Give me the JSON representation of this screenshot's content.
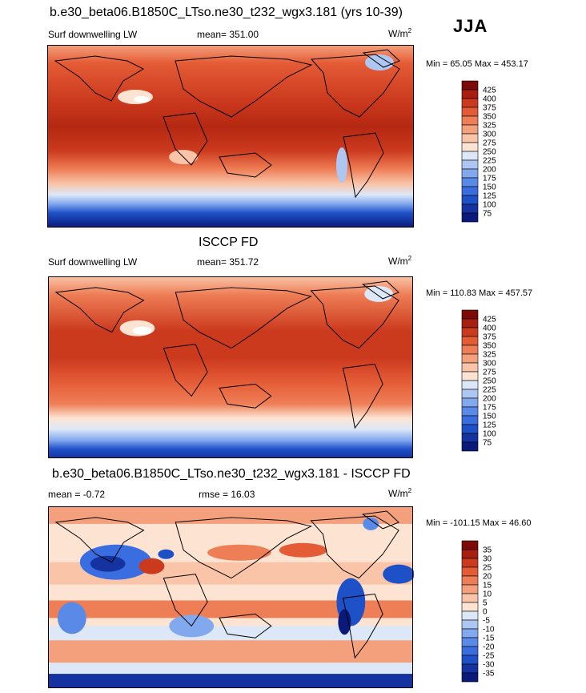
{
  "header": {
    "title1": "b.e30_beta06.B1850C_LTso.ne30_t232_wgx3.181 (yrs 10-39)",
    "season": "JJA"
  },
  "panels": [
    {
      "left_label": "Surf downwelling LW",
      "stat_label": "mean= 351.00",
      "units": "W/m",
      "units_sup": "2",
      "minmax": "Min =  65.05 Max = 453.17"
    },
    {
      "title": "ISCCP FD",
      "left_label": "Surf downwelling LW",
      "stat_label": "mean= 351.72",
      "units": "W/m",
      "units_sup": "2",
      "minmax": "Min = 110.83 Max = 457.57"
    },
    {
      "title": "b.e30_beta06.B1850C_LTso.ne30_t232_wgx3.181 - ISCCP FD",
      "left_label": "mean =  -0.72",
      "stat_label": "rmse =  16.03",
      "units": "W/m",
      "units_sup": "2",
      "minmax": "Min = -101.15 Max =  46.60"
    }
  ],
  "chart_data": [
    {
      "type": "heatmap",
      "title": "b.e30_beta06.B1850C_LTso.ne30_t232_wgx3.181 (yrs 10-39)",
      "variable": "Surf downwelling LW",
      "units": "W/m2",
      "mean": 351.0,
      "min": 65.05,
      "max": 453.17,
      "colorbar_levels": [
        75,
        100,
        125,
        150,
        175,
        200,
        225,
        250,
        275,
        300,
        325,
        350,
        375,
        400,
        425
      ],
      "colorbar_colors": [
        "#0a1a7a",
        "#1432a0",
        "#1e50c8",
        "#3a6ee0",
        "#5a8ae8",
        "#82a8ee",
        "#aec6f2",
        "#dce8f8",
        "#fde4d2",
        "#f9c4a8",
        "#f4a07c",
        "#ee7e56",
        "#e45c36",
        "#cc3a1e",
        "#a81e10",
        "#7c0a06"
      ]
    },
    {
      "type": "heatmap",
      "title": "ISCCP FD",
      "variable": "Surf downwelling LW",
      "units": "W/m2",
      "mean": 351.72,
      "min": 110.83,
      "max": 457.57,
      "colorbar_levels": [
        75,
        100,
        125,
        150,
        175,
        200,
        225,
        250,
        275,
        300,
        325,
        350,
        375,
        400,
        425
      ],
      "colorbar_colors": [
        "#0a1a7a",
        "#1432a0",
        "#1e50c8",
        "#3a6ee0",
        "#5a8ae8",
        "#82a8ee",
        "#aec6f2",
        "#dce8f8",
        "#fde4d2",
        "#f9c4a8",
        "#f4a07c",
        "#ee7e56",
        "#e45c36",
        "#cc3a1e",
        "#a81e10",
        "#7c0a06"
      ]
    },
    {
      "type": "heatmap",
      "title": "b.e30_beta06.B1850C_LTso.ne30_t232_wgx3.181 - ISCCP FD",
      "variable": "difference",
      "units": "W/m2",
      "mean": -0.72,
      "rmse": 16.03,
      "min": -101.15,
      "max": 46.6,
      "colorbar_levels": [
        -35,
        -30,
        -25,
        -20,
        -15,
        -10,
        -5,
        0,
        5,
        10,
        15,
        20,
        25,
        30,
        35
      ],
      "colorbar_colors": [
        "#0a1a7a",
        "#1432a0",
        "#1e50c8",
        "#3a6ee0",
        "#5a8ae8",
        "#82a8ee",
        "#aec6f2",
        "#dce8f8",
        "#fde4d2",
        "#f9c4a8",
        "#f4a07c",
        "#ee7e56",
        "#e45c36",
        "#cc3a1e",
        "#a81e10",
        "#7c0a06"
      ]
    }
  ]
}
